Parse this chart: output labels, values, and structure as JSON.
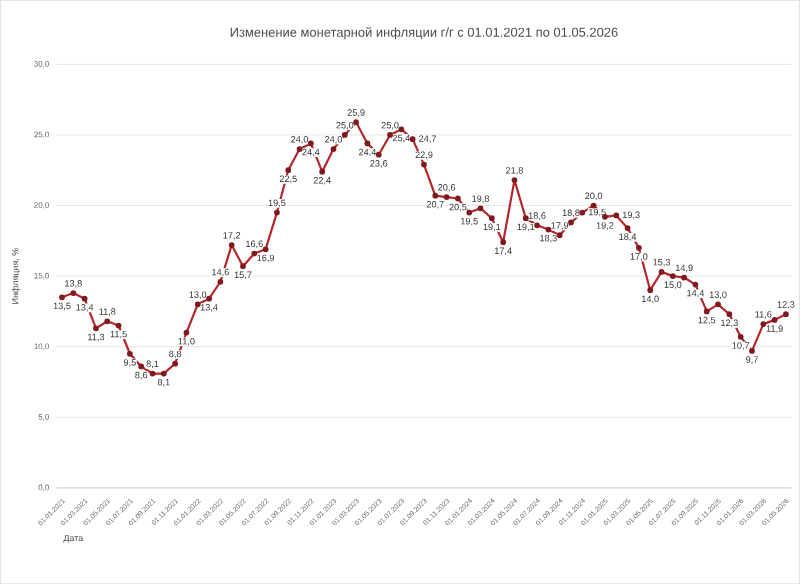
{
  "chart_data": {
    "type": "line",
    "title": "Изменение монетарной инфляции г/г с 01.01.2021 по 01.05.2026",
    "xlabel": "Дата",
    "ylabel": "Инфляция, %",
    "categories": [
      "01.01.2021",
      null,
      "01.03.2021",
      null,
      "01.05.2021",
      null,
      "01.07.2021",
      null,
      "01.09.2021",
      null,
      "01.11.2021",
      null,
      "01.01.2022",
      null,
      "01.03.2022",
      null,
      "01.05.2022",
      null,
      "01.07.2022",
      null,
      "01.09.2022",
      null,
      "01.11.2022",
      null,
      "01.01.2023",
      null,
      "01.03.2023",
      null,
      "01.05.2023",
      null,
      "01.07.2023",
      null,
      "01.09.2023",
      null,
      "01.11.2023",
      null,
      "01.01.2024",
      null,
      "01.03.2024",
      null,
      "01.05.2024",
      null,
      "01.07.2024",
      null,
      "01.09.2024",
      null,
      "01.11.2024",
      null,
      "01.01.2025",
      null,
      "01.03.2025",
      null,
      "01.05.2025",
      null,
      "01.07.2025",
      null,
      "01.09.2025",
      null,
      "01.11.2025",
      null,
      "01.01.2026",
      null,
      "01.03.2026",
      null,
      "01.05.2026"
    ],
    "values": [
      13.5,
      13.8,
      13.4,
      11.3,
      11.8,
      11.5,
      9.5,
      8.6,
      8.1,
      8.1,
      8.8,
      11.0,
      13.0,
      13.4,
      14.6,
      17.2,
      15.7,
      16.6,
      16.9,
      19.5,
      22.5,
      24.0,
      24.4,
      22.4,
      24.0,
      25.0,
      25.9,
      24.4,
      23.6,
      25.0,
      25.4,
      24.7,
      22.9,
      20.7,
      20.6,
      20.5,
      19.5,
      19.8,
      19.1,
      17.4,
      21.8,
      19.1,
      18.6,
      18.3,
      17.9,
      18.8,
      19.5,
      20.0,
      19.2,
      19.3,
      18.4,
      17.0,
      14.0,
      15.3,
      15.0,
      14.9,
      14.4,
      12.5,
      13.0,
      12.3,
      10.7,
      9.7,
      11.6,
      11.9,
      12.3
    ],
    "value_labels": [
      "13,5",
      "13,8",
      "13,4",
      "11,3",
      "11,8",
      "11,5",
      "9,5",
      "8,6",
      "8,1",
      "8,1",
      "8,8",
      "11,0",
      "13,0",
      "13,4",
      "14,6",
      "17,2",
      "15,7",
      "16,6",
      "16,9",
      "19,5",
      "22,5",
      "24,0",
      "24,4",
      "22,4",
      "24,0",
      "25,0",
      "25,9",
      "24,4",
      "23,6",
      "25,0",
      "25,4",
      "24,7",
      "22,9",
      "20,7",
      "20,6",
      "20,5",
      "19,5",
      "19,8",
      "19,1",
      "17,4",
      "21,8",
      "19,1",
      "18,6",
      "18,3",
      "17,9",
      "18,8",
      "19,5",
      "20,0",
      "19,2",
      "19,3",
      "18,4",
      "17,0",
      "14,0",
      "15,3",
      "15,0",
      "14,9",
      "14,4",
      "12,5",
      "13,0",
      "12,3",
      "10,7",
      "9,7",
      "11,6",
      "11,9",
      "12,3"
    ],
    "color": "#b5252c",
    "marker": "circle",
    "line_style": "solid",
    "grid": "y",
    "ylim": [
      0,
      30
    ],
    "yticks": [
      {
        "value": 0,
        "label": "0,0"
      },
      {
        "value": 5,
        "label": "5,0"
      },
      {
        "value": 10,
        "label": "10,0"
      },
      {
        "value": 15,
        "label": "15,0"
      },
      {
        "value": 20,
        "label": "20,0"
      },
      {
        "value": 25,
        "label": "25,0"
      },
      {
        "value": 30,
        "label": "30,0"
      }
    ]
  }
}
